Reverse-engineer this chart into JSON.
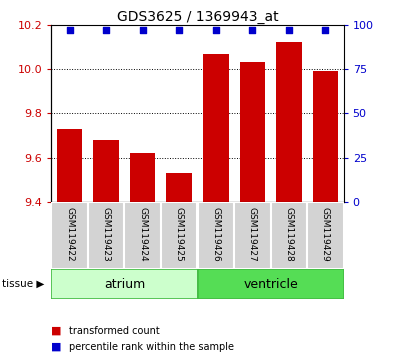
{
  "title": "GDS3625 / 1369943_at",
  "samples": [
    "GSM119422",
    "GSM119423",
    "GSM119424",
    "GSM119425",
    "GSM119426",
    "GSM119427",
    "GSM119428",
    "GSM119429"
  ],
  "bar_values": [
    9.73,
    9.68,
    9.62,
    9.53,
    10.07,
    10.03,
    10.12,
    9.99
  ],
  "percentile_values": [
    100,
    100,
    100,
    100,
    100,
    100,
    100,
    100
  ],
  "bar_color": "#cc0000",
  "percentile_color": "#0000cc",
  "ylim_left": [
    9.4,
    10.2
  ],
  "ylim_right": [
    0,
    100
  ],
  "yticks_left": [
    9.4,
    9.6,
    9.8,
    10.0,
    10.2
  ],
  "yticks_right": [
    0,
    25,
    50,
    75,
    100
  ],
  "tissue_groups": [
    {
      "label": "atrium",
      "n_samples": 4,
      "color": "#ccffcc",
      "edge_color": "#44bb44"
    },
    {
      "label": "ventricle",
      "n_samples": 4,
      "color": "#55dd55",
      "edge_color": "#44bb44"
    }
  ],
  "tissue_label": "tissue",
  "legend_items": [
    {
      "label": "transformed count",
      "color": "#cc0000"
    },
    {
      "label": "percentile rank within the sample",
      "color": "#0000cc"
    }
  ],
  "bar_width": 0.7,
  "baseline": 9.4,
  "tick_label_color_left": "#cc0000",
  "tick_label_color_right": "#0000cc",
  "sample_box_color": "#d3d3d3",
  "sample_box_edge": "#aaaaaa"
}
